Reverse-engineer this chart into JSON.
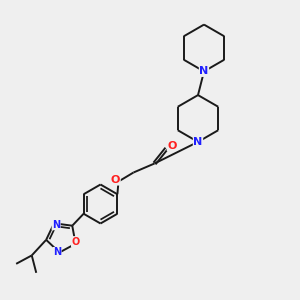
{
  "bg_color": "#efefef",
  "bond_color": "#1a1a1a",
  "N_color": "#2020ff",
  "O_color": "#ff2020",
  "lw": 1.4,
  "figsize": [
    3.0,
    3.0
  ],
  "dpi": 100,
  "xlim": [
    0,
    10
  ],
  "ylim": [
    0,
    10
  ]
}
